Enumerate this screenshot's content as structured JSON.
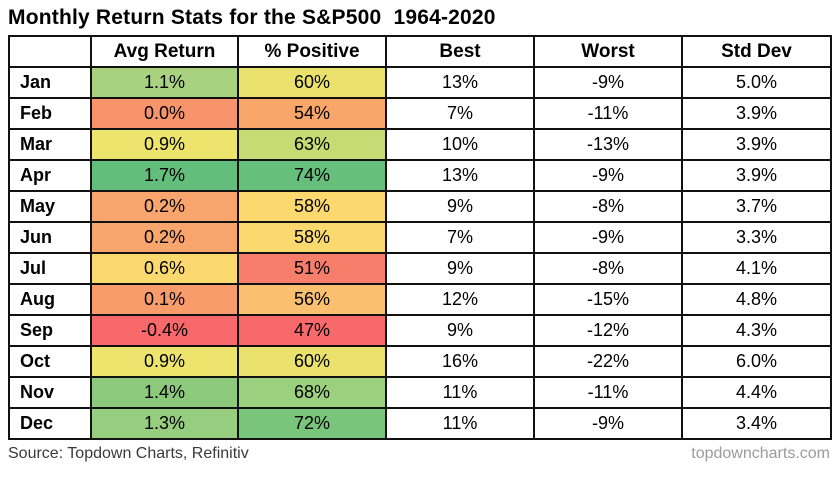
{
  "title": "Monthly Return Stats for the S&P500  1964-2020",
  "footer": {
    "source": "Source: Topdown Charts, Refinitiv",
    "site": "topdowncharts.com"
  },
  "table": {
    "headers": [
      "",
      "Avg Return",
      "% Positive",
      "Best",
      "Worst",
      "Std Dev"
    ],
    "rows": [
      {
        "month": "Jan",
        "avg_return": "1.1%",
        "avg_return_color": "#a8d27f",
        "pct_positive": "60%",
        "pct_positive_color": "#ebe26e",
        "best": "13%",
        "worst": "-9%",
        "std_dev": "5.0%"
      },
      {
        "month": "Feb",
        "avg_return": "0.0%",
        "avg_return_color": "#f8946c",
        "pct_positive": "54%",
        "pct_positive_color": "#f9a66b",
        "best": "7%",
        "worst": "-11%",
        "std_dev": "3.9%"
      },
      {
        "month": "Mar",
        "avg_return": "0.9%",
        "avg_return_color": "#ece46d",
        "pct_positive": "63%",
        "pct_positive_color": "#c6db74",
        "best": "10%",
        "worst": "-13%",
        "std_dev": "3.9%"
      },
      {
        "month": "Apr",
        "avg_return": "1.7%",
        "avg_return_color": "#63be7b",
        "pct_positive": "74%",
        "pct_positive_color": "#66bf7b",
        "best": "13%",
        "worst": "-9%",
        "std_dev": "3.9%"
      },
      {
        "month": "May",
        "avg_return": "0.2%",
        "avg_return_color": "#f9a56e",
        "pct_positive": "58%",
        "pct_positive_color": "#fbd96f",
        "best": "9%",
        "worst": "-8%",
        "std_dev": "3.7%"
      },
      {
        "month": "Jun",
        "avg_return": "0.2%",
        "avg_return_color": "#f9a56e",
        "pct_positive": "58%",
        "pct_positive_color": "#fbd96f",
        "best": "7%",
        "worst": "-9%",
        "std_dev": "3.3%"
      },
      {
        "month": "Jul",
        "avg_return": "0.6%",
        "avg_return_color": "#fbd96f",
        "pct_positive": "51%",
        "pct_positive_color": "#f87e6c",
        "best": "9%",
        "worst": "-8%",
        "std_dev": "4.1%"
      },
      {
        "month": "Aug",
        "avg_return": "0.1%",
        "avg_return_color": "#f99c6c",
        "pct_positive": "56%",
        "pct_positive_color": "#fbbf70",
        "best": "12%",
        "worst": "-15%",
        "std_dev": "4.8%"
      },
      {
        "month": "Sep",
        "avg_return": "-0.4%",
        "avg_return_color": "#f8696b",
        "pct_positive": "47%",
        "pct_positive_color": "#f8696b",
        "best": "9%",
        "worst": "-12%",
        "std_dev": "4.3%"
      },
      {
        "month": "Oct",
        "avg_return": "0.9%",
        "avg_return_color": "#ece46d",
        "pct_positive": "60%",
        "pct_positive_color": "#ebe26e",
        "best": "16%",
        "worst": "-22%",
        "std_dev": "6.0%"
      },
      {
        "month": "Nov",
        "avg_return": "1.4%",
        "avg_return_color": "#8cc97d",
        "pct_positive": "68%",
        "pct_positive_color": "#9bd07f",
        "best": "11%",
        "worst": "-11%",
        "std_dev": "4.4%"
      },
      {
        "month": "Dec",
        "avg_return": "1.3%",
        "avg_return_color": "#96cd7e",
        "pct_positive": "72%",
        "pct_positive_color": "#79c57c",
        "best": "11%",
        "worst": "-9%",
        "std_dev": "3.4%"
      }
    ]
  },
  "chart_data": {
    "type": "table",
    "title": "Monthly Return Stats for the S&P500  1964-2020",
    "categories": [
      "Jan",
      "Feb",
      "Mar",
      "Apr",
      "May",
      "Jun",
      "Jul",
      "Aug",
      "Sep",
      "Oct",
      "Nov",
      "Dec"
    ],
    "series": [
      {
        "name": "Avg Return",
        "unit": "%",
        "values": [
          1.1,
          0.0,
          0.9,
          1.7,
          0.2,
          0.2,
          0.6,
          0.1,
          -0.4,
          0.9,
          1.4,
          1.3
        ]
      },
      {
        "name": "% Positive",
        "unit": "%",
        "values": [
          60,
          54,
          63,
          74,
          58,
          58,
          51,
          56,
          47,
          60,
          68,
          72
        ]
      },
      {
        "name": "Best",
        "unit": "%",
        "values": [
          13,
          7,
          10,
          13,
          9,
          7,
          9,
          12,
          9,
          16,
          11,
          11
        ]
      },
      {
        "name": "Worst",
        "unit": "%",
        "values": [
          -9,
          -11,
          -13,
          -9,
          -8,
          -9,
          -8,
          -15,
          -12,
          -22,
          -11,
          -9
        ]
      },
      {
        "name": "Std Dev",
        "unit": "%",
        "values": [
          5.0,
          3.9,
          3.9,
          3.9,
          3.7,
          3.3,
          4.1,
          4.8,
          4.3,
          6.0,
          4.4,
          3.4
        ]
      }
    ],
    "conditional_formatting": {
      "columns": [
        "Avg Return",
        "% Positive"
      ],
      "scale": {
        "low": "#f8696b",
        "mid": "#ffeb84",
        "high": "#63be7b"
      }
    },
    "legend_position": "none",
    "grid": true,
    "source": "Topdown Charts, Refinitiv"
  }
}
